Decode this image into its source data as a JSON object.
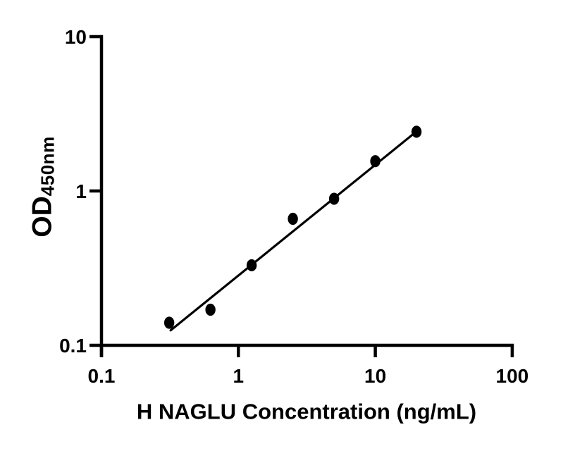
{
  "chart_data": {
    "type": "scatter",
    "title": "",
    "xlabel": "H NAGLU Concentration (ng/mL)",
    "ylabel_main": "OD",
    "ylabel_sub": "450nm",
    "xscale": "log",
    "yscale": "log",
    "xlim": [
      0.1,
      100
    ],
    "ylim": [
      0.1,
      10
    ],
    "xticks": {
      "values": [
        0.1,
        1,
        10,
        100
      ],
      "labels": [
        "0.1",
        "1",
        "10",
        "100"
      ]
    },
    "yticks": {
      "values": [
        0.1,
        1,
        10
      ],
      "labels": [
        "0.1",
        "1",
        "10"
      ]
    },
    "points": {
      "x": [
        0.3125,
        0.625,
        1.25,
        2.5,
        5,
        10,
        20
      ],
      "y": [
        0.14,
        0.17,
        0.33,
        0.66,
        0.89,
        1.56,
        2.42
      ]
    },
    "trendline": {
      "x_start": 0.32,
      "y_start": 0.125,
      "x_end": 20,
      "y_end": 2.43
    },
    "grid": false,
    "legend": "none",
    "colors": {
      "marker": "#000000",
      "line": "#000000",
      "axis": "#000000",
      "text": "#000000",
      "background": "#ffffff"
    }
  }
}
